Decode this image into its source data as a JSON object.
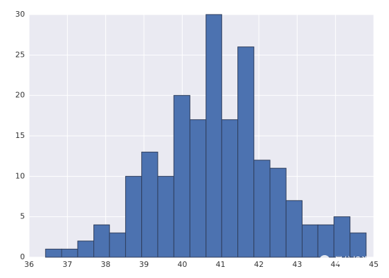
{
  "chart_data": {
    "type": "histogram",
    "bins": [
      36.43,
      36.85,
      37.27,
      37.69,
      38.1,
      38.52,
      38.94,
      39.36,
      39.78,
      40.2,
      40.62,
      41.03,
      41.45,
      41.87,
      42.29,
      42.71,
      43.13,
      43.54,
      43.96,
      44.38,
      44.8
    ],
    "values": [
      1,
      1,
      2,
      4,
      3,
      10,
      13,
      10,
      20,
      17,
      30,
      17,
      26,
      12,
      11,
      7,
      4,
      4,
      5,
      3
    ],
    "color": "#4c72b0",
    "xlim": [
      36,
      45
    ],
    "xticks": [
      36,
      37,
      38,
      39,
      40,
      41,
      42,
      43,
      44,
      45
    ],
    "ylim": [
      0,
      30
    ],
    "yticks": [
      0,
      5,
      10,
      15,
      20,
      25,
      30
    ],
    "grid": true,
    "background": "#eaeaf2",
    "watermark": "量信投资"
  }
}
